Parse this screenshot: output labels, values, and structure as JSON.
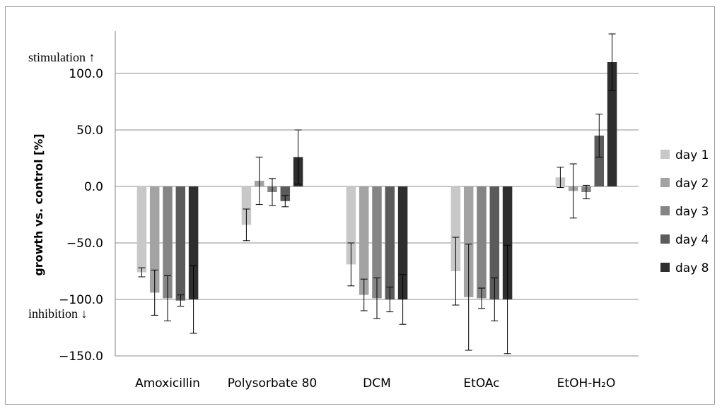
{
  "chart_data": {
    "type": "bar",
    "ylabel": "growth vs. control [%]",
    "ylim": [
      -150,
      130
    ],
    "yticks": [
      100,
      50,
      0,
      -50,
      -100,
      -150
    ],
    "ytick_labels": [
      "100.0",
      "50.0",
      "0.0",
      "−50.0",
      "−100.0",
      "−150.0"
    ],
    "grid": true,
    "legend_position": "right",
    "annotations": {
      "top": "stimulation ↑",
      "bottom": "inhibition ↓"
    },
    "categories": [
      "Amoxicillin",
      "Polysorbate 80",
      "DCM",
      "EtOAc",
      "EtOH-H₂O"
    ],
    "series": [
      {
        "name": "day 1",
        "color": "#c8c8c8",
        "values": [
          -76,
          -34,
          -69,
          -75,
          8
        ],
        "errors": [
          4,
          14,
          19,
          30,
          9
        ]
      },
      {
        "name": "day 2",
        "color": "#a3a3a3",
        "values": [
          -94,
          5,
          -96,
          -98,
          -4
        ],
        "errors": [
          20,
          21,
          14,
          47,
          24
        ]
      },
      {
        "name": "day 3",
        "color": "#858585",
        "values": [
          -99,
          -5,
          -99,
          -99,
          -5
        ],
        "errors": [
          20,
          12,
          18,
          9,
          6
        ]
      },
      {
        "name": "day 4",
        "color": "#5b5b5b",
        "values": [
          -101,
          -13,
          -100,
          -100,
          45
        ],
        "errors": [
          5,
          5,
          11,
          19,
          19
        ]
      },
      {
        "name": "day 8",
        "color": "#2e2e2e",
        "values": [
          -100,
          26,
          -100,
          -100,
          110
        ],
        "errors": [
          30,
          24,
          22,
          48,
          25
        ]
      }
    ]
  }
}
